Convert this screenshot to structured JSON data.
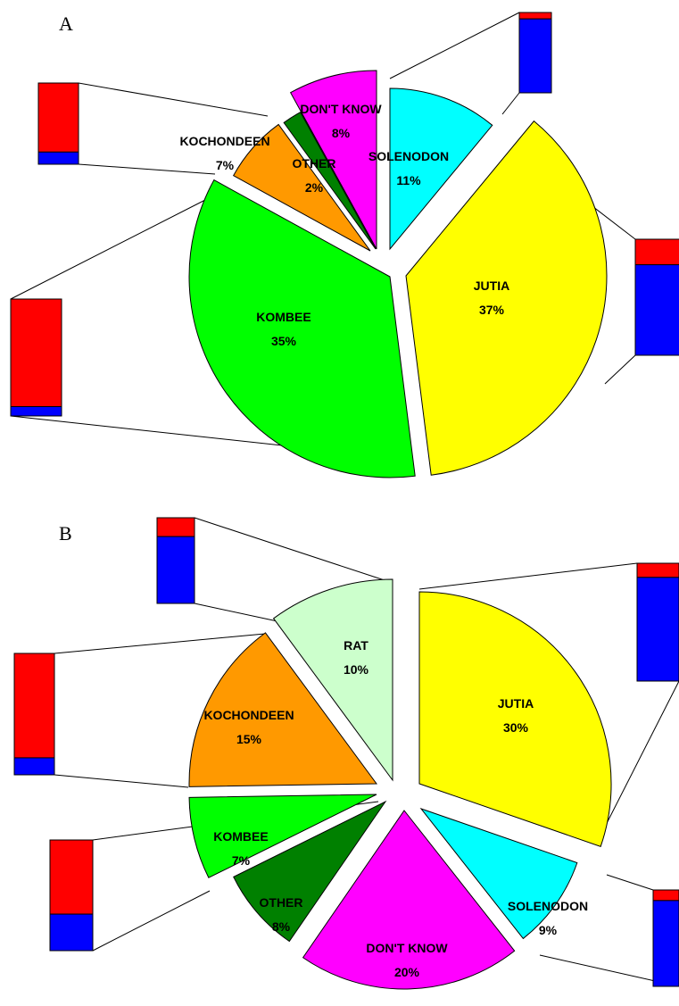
{
  "chart_data": [
    {
      "type": "pie",
      "panel": "A",
      "slices": [
        {
          "label": "SOLENODON",
          "value": 11,
          "color": "#00FFFF",
          "bar": {
            "red": 0.08,
            "blue": 0.92
          }
        },
        {
          "label": "JUTIA",
          "value": 37,
          "color": "#FFFF00",
          "bar": {
            "red": 0.22,
            "blue": 0.78
          }
        },
        {
          "label": "KOMBEE",
          "value": 35,
          "color": "#00FF00",
          "bar": {
            "red": 0.92,
            "blue": 0.08
          }
        },
        {
          "label": "KOCHONDEEN",
          "value": 7,
          "color": "#FF9900",
          "bar": {
            "red": 0.85,
            "blue": 0.15
          }
        },
        {
          "label": "OTHER",
          "value": 2,
          "color": "#008000"
        },
        {
          "label": "DON'T KNOW",
          "value": 8,
          "color": "#FF00FF"
        }
      ],
      "bar_colors": {
        "red": "#FF0000",
        "blue": "#0000FF"
      }
    },
    {
      "type": "pie",
      "panel": "B",
      "slices": [
        {
          "label": "JUTIA",
          "value": 30,
          "color": "#FFFF00",
          "bar": {
            "red": 0.12,
            "blue": 0.88
          }
        },
        {
          "label": "SOLENODON",
          "value": 9,
          "color": "#00FFFF",
          "bar": {
            "red": 0.11,
            "blue": 0.89
          }
        },
        {
          "label": "DON'T KNOW",
          "value": 20,
          "color": "#FF00FF"
        },
        {
          "label": "OTHER",
          "value": 8,
          "color": "#008000"
        },
        {
          "label": "KOMBEE",
          "value": 7,
          "color": "#00FF00",
          "bar": {
            "red": 0.67,
            "blue": 0.33
          }
        },
        {
          "label": "KOCHONDEEN",
          "value": 15,
          "color": "#FF9900",
          "bar": {
            "red": 0.86,
            "blue": 0.14
          }
        },
        {
          "label": "RAT",
          "value": 10,
          "color": "#CCFFCC",
          "bar": {
            "red": 0.22,
            "blue": 0.78
          }
        }
      ],
      "bar_colors": {
        "red": "#FF0000",
        "blue": "#0000FF"
      }
    }
  ]
}
